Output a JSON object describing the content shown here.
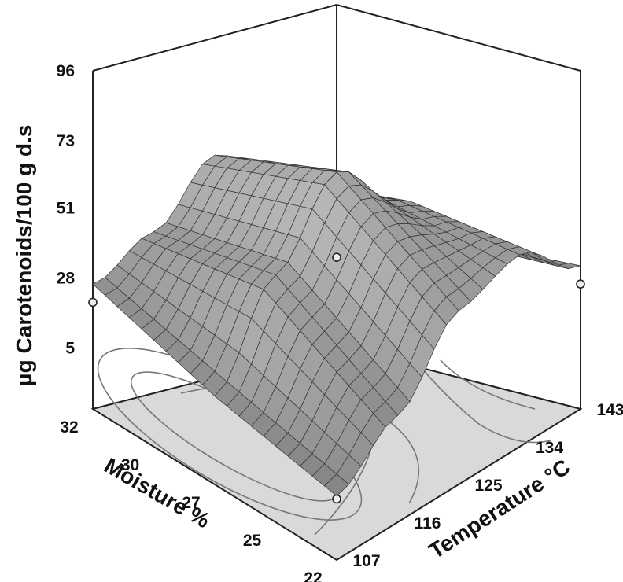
{
  "chart_data": {
    "type": "surface3d",
    "title": "",
    "zlabel": "μg Carotenoids/100 g d.s",
    "xlabel": "Moisture %",
    "ylabel": "Temperature °C",
    "z_ticks": [
      "96",
      "73",
      "51",
      "28",
      "5"
    ],
    "x_ticks": [
      "32",
      "30",
      "27",
      "25",
      "22"
    ],
    "y_ticks": [
      "107",
      "116",
      "125",
      "134",
      "143"
    ],
    "x_range": [
      22,
      32
    ],
    "y_range": [
      107,
      143
    ],
    "z_range": [
      5,
      96
    ],
    "contour_floor": true,
    "surface_color": "#9a9a9a",
    "floor_color": "#d9d9d9",
    "sample_points": [
      {
        "moisture": 32,
        "temperature": 107,
        "carotenoids": 20
      },
      {
        "moisture": 27,
        "temperature": 125,
        "carotenoids": 42
      },
      {
        "moisture": 22,
        "temperature": 107,
        "carotenoids": 5
      },
      {
        "moisture": 22,
        "temperature": 143,
        "carotenoids": 26
      }
    ],
    "surface_profile": {
      "temperature": [
        107,
        116,
        125,
        134,
        143
      ],
      "moisture_32": [
        26,
        38,
        58,
        45,
        28
      ],
      "moisture_27": [
        14,
        45,
        70,
        52,
        30
      ],
      "moisture_22": [
        6,
        20,
        42,
        48,
        32
      ]
    }
  }
}
